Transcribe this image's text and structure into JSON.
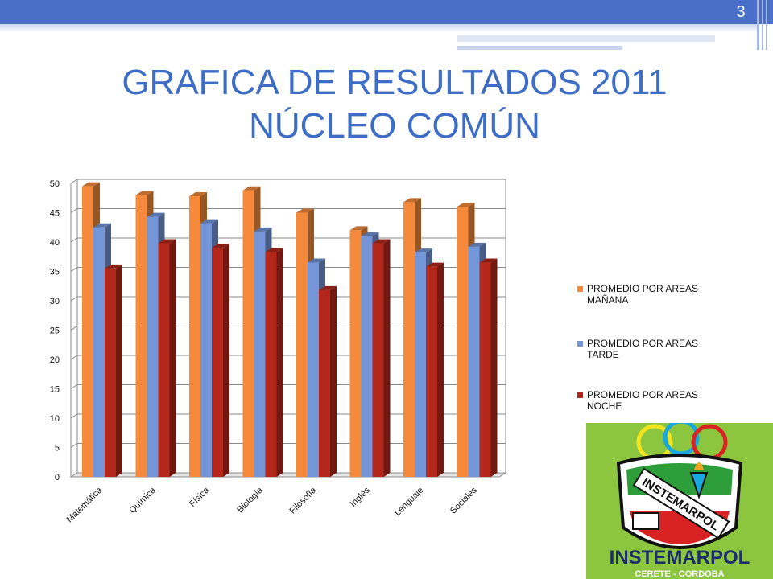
{
  "slide": {
    "number": "3",
    "title_line1": "GRAFICA DE RESULTADOS 2011",
    "title_line2": "NÚCLEO COMÚN"
  },
  "logo": {
    "text": "INSTEMARPOL",
    "subtitle": "CERETE - CORDOBA",
    "banner": "INSTEMARPOL"
  },
  "chart_data": {
    "type": "bar",
    "categories": [
      "Matemática",
      "Química",
      "Física",
      "Biología",
      "Filosofía",
      "Inglés",
      "Lenguaje",
      "Sociales"
    ],
    "series": [
      {
        "name": "PROMEDIO POR AREAS MAÑANA",
        "color": "#f58a3c",
        "values": [
          49.5,
          48,
          47.8,
          48.8,
          45,
          42,
          46.8,
          46
        ]
      },
      {
        "name": "PROMEDIO POR AREAS TARDE",
        "color": "#7495d8",
        "values": [
          42.5,
          44.3,
          43.2,
          41.8,
          36.5,
          41,
          38.2,
          39.2
        ]
      },
      {
        "name": "PROMEDIO POR AREAS NOCHE",
        "color": "#b3281b",
        "values": [
          35.5,
          39.8,
          39,
          38.3,
          31.8,
          39.8,
          35.8,
          36.5
        ]
      }
    ],
    "legend_lines": [
      [
        "PROMEDIO POR AREAS",
        "MAÑANA"
      ],
      [
        "PROMEDIO POR AREAS",
        "TARDE"
      ],
      [
        "PROMEDIO POR AREAS",
        "NOCHE"
      ]
    ],
    "y_ticks": [
      0,
      5,
      10,
      15,
      20,
      25,
      30,
      35,
      40,
      45,
      50
    ],
    "ylim": [
      0,
      50
    ],
    "grid": true,
    "legend_position": "right"
  }
}
